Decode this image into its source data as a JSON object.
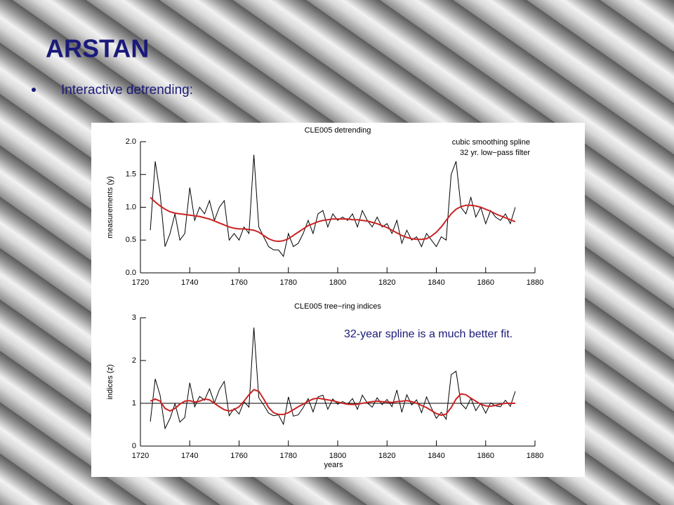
{
  "slide": {
    "title": "ARSTAN",
    "bullet": "Interactive detrending:"
  },
  "chart_data": [
    {
      "type": "line",
      "title": "CLE005 detrending",
      "ylabel": "measurements (y)",
      "annotations": [
        "cubic smoothing spline",
        "32 yr. low−pass filter"
      ],
      "xlim": [
        1720,
        1880
      ],
      "xticks": [
        1720,
        1740,
        1760,
        1780,
        1800,
        1820,
        1840,
        1860,
        1880
      ],
      "ylim": [
        0,
        2
      ],
      "yticks": [
        {
          "value": 0,
          "label": "0.0"
        },
        0.5,
        {
          "value": 1,
          "label": "1.0"
        },
        1.5,
        {
          "value": 2,
          "label": "2.0"
        }
      ],
      "x": [
        1724,
        1726,
        1728,
        1730,
        1732,
        1734,
        1736,
        1738,
        1740,
        1742,
        1744,
        1746,
        1748,
        1750,
        1752,
        1754,
        1756,
        1758,
        1760,
        1762,
        1764,
        1766,
        1768,
        1770,
        1772,
        1774,
        1776,
        1778,
        1780,
        1782,
        1784,
        1786,
        1788,
        1790,
        1792,
        1794,
        1796,
        1798,
        1800,
        1802,
        1804,
        1806,
        1808,
        1810,
        1812,
        1814,
        1816,
        1818,
        1820,
        1822,
        1824,
        1826,
        1828,
        1830,
        1832,
        1834,
        1836,
        1838,
        1840,
        1842,
        1844,
        1846,
        1848,
        1850,
        1852,
        1854,
        1856,
        1858,
        1860,
        1862,
        1864,
        1866,
        1868,
        1870,
        1872
      ],
      "series": [
        {
          "color": "#000000",
          "values": [
            0.65,
            1.7,
            1.2,
            0.4,
            0.6,
            0.9,
            0.5,
            0.6,
            1.3,
            0.8,
            1.0,
            0.9,
            1.1,
            0.8,
            1.0,
            1.1,
            0.5,
            0.6,
            0.5,
            0.7,
            0.6,
            1.8,
            0.7,
            0.55,
            0.4,
            0.35,
            0.35,
            0.25,
            0.6,
            0.4,
            0.45,
            0.6,
            0.8,
            0.6,
            0.9,
            0.95,
            0.7,
            0.9,
            0.8,
            0.85,
            0.8,
            0.9,
            0.7,
            0.95,
            0.8,
            0.7,
            0.85,
            0.7,
            0.75,
            0.6,
            0.8,
            0.45,
            0.65,
            0.5,
            0.55,
            0.4,
            0.6,
            0.5,
            0.4,
            0.55,
            0.5,
            1.5,
            1.7,
            1.0,
            0.9,
            1.15,
            0.85,
            1.0,
            0.75,
            0.95,
            0.85,
            0.8,
            0.9,
            0.75,
            1.0
          ]
        },
        {
          "color": "#cc2222",
          "values": [
            1.15,
            1.08,
            1.02,
            0.97,
            0.93,
            0.91,
            0.9,
            0.89,
            0.88,
            0.87,
            0.86,
            0.84,
            0.82,
            0.79,
            0.76,
            0.73,
            0.7,
            0.68,
            0.67,
            0.67,
            0.66,
            0.65,
            0.62,
            0.57,
            0.52,
            0.49,
            0.48,
            0.49,
            0.52,
            0.57,
            0.62,
            0.67,
            0.72,
            0.75,
            0.78,
            0.8,
            0.81,
            0.82,
            0.82,
            0.82,
            0.82,
            0.81,
            0.81,
            0.8,
            0.79,
            0.77,
            0.75,
            0.72,
            0.69,
            0.65,
            0.61,
            0.57,
            0.54,
            0.52,
            0.51,
            0.51,
            0.52,
            0.56,
            0.62,
            0.7,
            0.8,
            0.9,
            0.97,
            1.01,
            1.03,
            1.03,
            1.02,
            1.0,
            0.97,
            0.94,
            0.9,
            0.87,
            0.84,
            0.81,
            0.78
          ]
        }
      ]
    },
    {
      "type": "line",
      "title": "CLE005 tree−ring indices",
      "ylabel": "indices (z)",
      "xlabel": "years",
      "annotations": [
        "32-year spline is a much better fit."
      ],
      "reference_line": 1,
      "xlim": [
        1720,
        1880
      ],
      "xticks": [
        1720,
        1740,
        1760,
        1780,
        1800,
        1820,
        1840,
        1860,
        1880
      ],
      "ylim": [
        0,
        3
      ],
      "yticks": [
        0,
        1,
        2,
        3
      ],
      "x": [
        1724,
        1726,
        1728,
        1730,
        1732,
        1734,
        1736,
        1738,
        1740,
        1742,
        1744,
        1746,
        1748,
        1750,
        1752,
        1754,
        1756,
        1758,
        1760,
        1762,
        1764,
        1766,
        1768,
        1770,
        1772,
        1774,
        1776,
        1778,
        1780,
        1782,
        1784,
        1786,
        1788,
        1790,
        1792,
        1794,
        1796,
        1798,
        1800,
        1802,
        1804,
        1806,
        1808,
        1810,
        1812,
        1814,
        1816,
        1818,
        1820,
        1822,
        1824,
        1826,
        1828,
        1830,
        1832,
        1834,
        1836,
        1838,
        1840,
        1842,
        1844,
        1846,
        1848,
        1850,
        1852,
        1854,
        1856,
        1858,
        1860,
        1862,
        1864,
        1866,
        1868,
        1870,
        1872
      ],
      "series": [
        {
          "color": "#000000",
          "values": [
            0.57,
            1.57,
            1.18,
            0.41,
            0.65,
            0.99,
            0.56,
            0.67,
            1.48,
            0.92,
            1.16,
            1.07,
            1.34,
            1.01,
            1.32,
            1.51,
            0.71,
            0.88,
            0.75,
            1.04,
            0.91,
            2.77,
            1.13,
            0.96,
            0.77,
            0.71,
            0.73,
            0.51,
            1.15,
            0.7,
            0.73,
            0.9,
            1.11,
            0.8,
            1.15,
            1.19,
            0.86,
            1.1,
            0.98,
            1.04,
            0.98,
            1.11,
            0.86,
            1.19,
            1.01,
            0.91,
            1.13,
            0.97,
            1.09,
            0.92,
            1.31,
            0.79,
            1.2,
            0.96,
            1.08,
            0.78,
            1.15,
            0.89,
            0.65,
            0.79,
            0.63,
            1.67,
            1.75,
            0.99,
            0.87,
            1.12,
            0.83,
            1,
            0.77,
            1.01,
            0.94,
            0.92,
            1.07,
            0.93,
            1.28
          ]
        },
        {
          "color": "#cc2222",
          "values": [
            1.05,
            1.1,
            1.05,
            0.88,
            0.82,
            0.88,
            0.98,
            1.05,
            1.06,
            1.03,
            1.05,
            1.1,
            1.08,
            1,
            0.92,
            0.85,
            0.82,
            0.85,
            0.92,
            1.05,
            1.2,
            1.32,
            1.28,
            1.1,
            0.9,
            0.78,
            0.74,
            0.74,
            0.78,
            0.85,
            0.92,
            0.98,
            1.05,
            1.1,
            1.12,
            1.1,
            1.08,
            1.06,
            1.03,
            1,
            0.98,
            0.97,
            0.98,
            1,
            1.02,
            1.04,
            1.05,
            1.04,
            1.03,
            1.02,
            1.04,
            1.05,
            1.06,
            1.04,
            1,
            0.95,
            0.9,
            0.83,
            0.76,
            0.72,
            0.75,
            0.9,
            1.1,
            1.22,
            1.2,
            1.12,
            1.05,
            0.98,
            0.94,
            0.93,
            0.95,
            0.98,
            1,
            1,
            1
          ]
        }
      ]
    }
  ]
}
